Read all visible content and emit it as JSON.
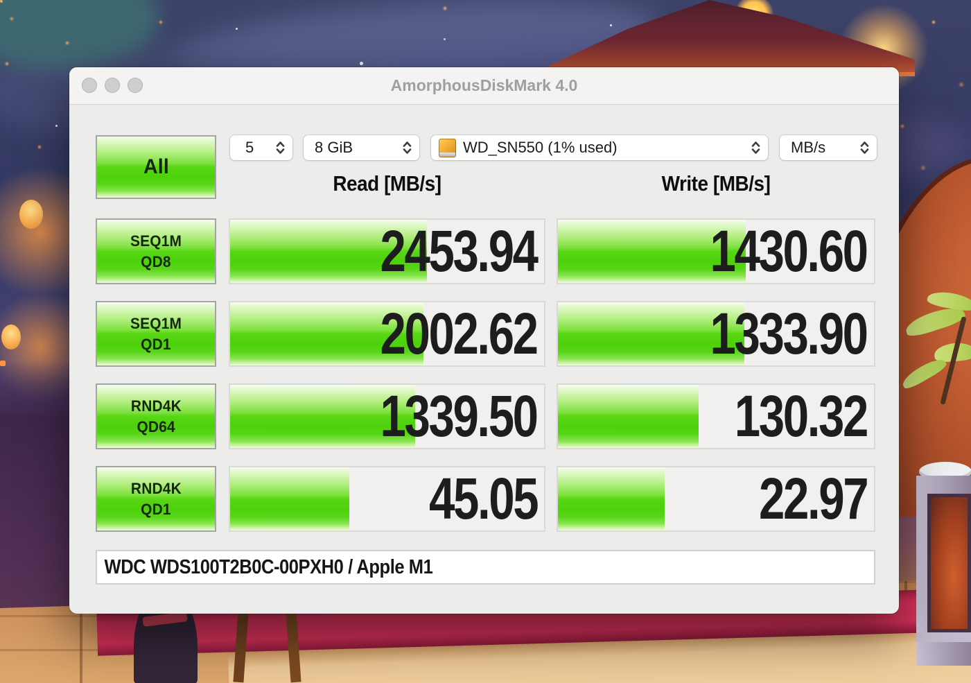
{
  "window": {
    "title": "AmorphousDiskMark 4.0"
  },
  "toolbar": {
    "all_button_label": "All",
    "trial_count": "5",
    "test_size": "8 GiB",
    "target_volume": "WD_SN550 (1% used)",
    "unit": "MB/s"
  },
  "headers": {
    "read": "Read [MB/s]",
    "write": "Write [MB/s]"
  },
  "rows": [
    {
      "test": "SEQ1M",
      "queue": "QD8",
      "read": "2453.94",
      "write": "1430.60",
      "read_fill_pct": 62.7,
      "write_fill_pct": 59.4
    },
    {
      "test": "SEQ1M",
      "queue": "QD1",
      "read": "2002.62",
      "write": "1333.90",
      "read_fill_pct": 61.5,
      "write_fill_pct": 58.9
    },
    {
      "test": "RND4K",
      "queue": "QD64",
      "read": "1339.50",
      "write": "130.32",
      "read_fill_pct": 59.0,
      "write_fill_pct": 44.5
    },
    {
      "test": "RND4K",
      "queue": "QD1",
      "read": "45.05",
      "write": "22.97",
      "read_fill_pct": 37.9,
      "write_fill_pct": 33.7
    }
  ],
  "footer": {
    "device_info": "WDC WDS100T2B0C-00PXH0 / Apple M1"
  },
  "icons": {
    "volume_icon": "orange-removable-disk-icon",
    "popup_chevron": "up-down-chevrons-icon",
    "traffic_lights": "inactive-gray-window-controls"
  },
  "colors": {
    "bar_green": "#4ed10a",
    "window_bg": "#ececeb",
    "cell_bg": "#f1f0ef",
    "carpet_red": "#d63159"
  }
}
